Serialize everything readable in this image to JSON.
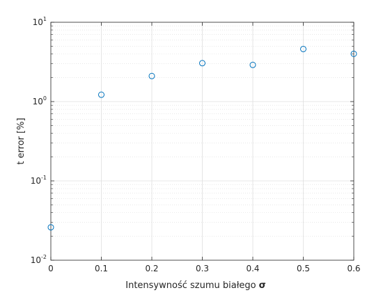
{
  "chart_data": {
    "type": "scatter",
    "title": "",
    "xlabel": "Intensywność szumu białego",
    "xlabel_symbol": "σ",
    "ylabel": "t error [%]",
    "xlim": [
      0,
      0.6
    ],
    "ylim": [
      0.01,
      10
    ],
    "yscale": "log",
    "grid": true,
    "minor_grid": true,
    "legend": "none",
    "marker": "open-circle",
    "marker_color": "#0072BD",
    "x_ticks": [
      "0",
      "0.1",
      "0.2",
      "0.3",
      "0.4",
      "0.5",
      "0.6"
    ],
    "y_ticks": [
      {
        "base": "10",
        "exp": "-2"
      },
      {
        "base": "10",
        "exp": "-1"
      },
      {
        "base": "10",
        "exp": "0"
      },
      {
        "base": "10",
        "exp": "1"
      }
    ],
    "x": [
      0,
      0.1,
      0.2,
      0.3,
      0.4,
      0.5,
      0.6
    ],
    "y": [
      0.026,
      1.22,
      2.1,
      3.05,
      2.9,
      4.6,
      4.0
    ]
  }
}
